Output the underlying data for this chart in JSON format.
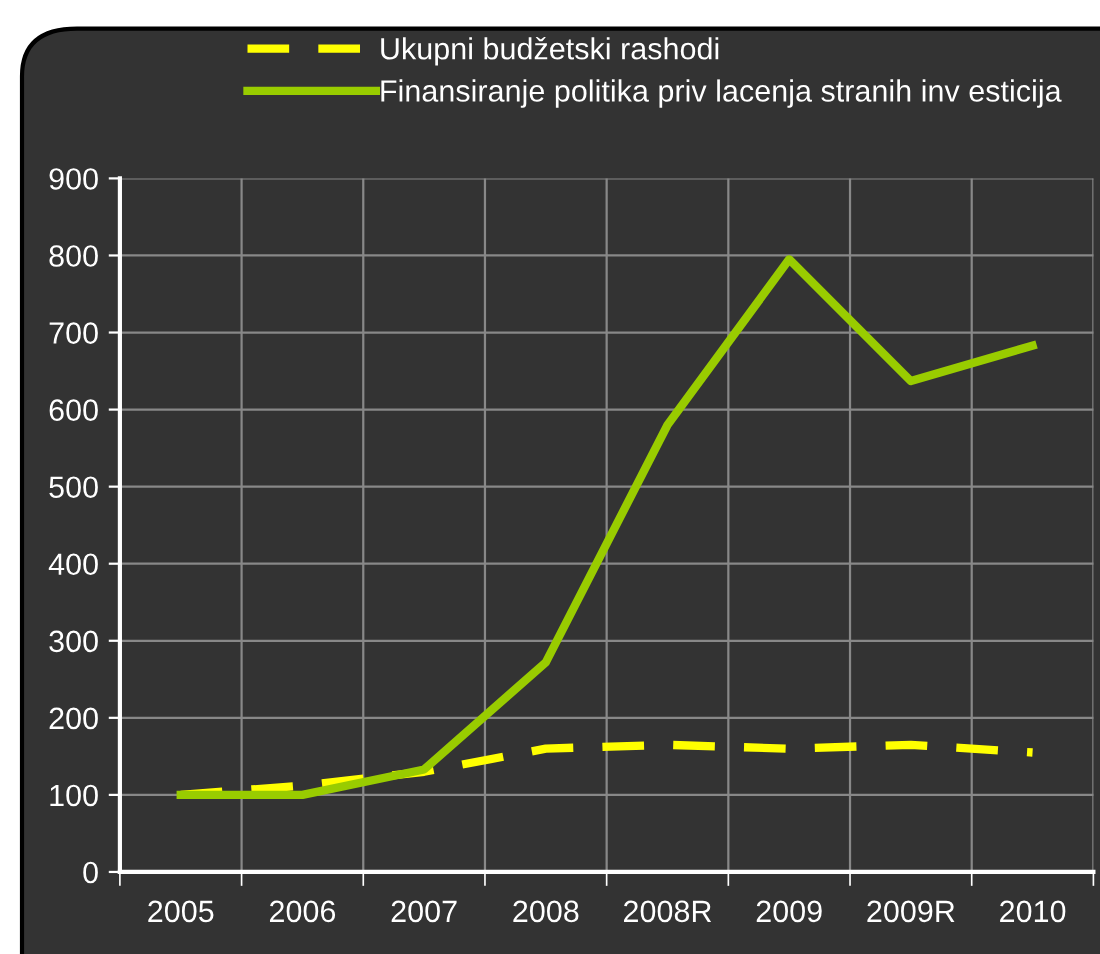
{
  "chart_data": {
    "type": "line",
    "categories": [
      "2005",
      "2006",
      "2007",
      "2008",
      "2008R",
      "2009",
      "2009R",
      "2010"
    ],
    "series": [
      {
        "name": "Ukupni budžetski rashodi",
        "color": "#ffff00",
        "line_style": "dashed",
        "values": [
          100,
          112,
          130,
          160,
          165,
          160,
          165,
          155
        ]
      },
      {
        "name": "Finansiranje politika priv lacenja stranih inv esticija",
        "color": "#99cc00",
        "line_style": "solid",
        "values": [
          100,
          100,
          133,
          272,
          580,
          795,
          637,
          683
        ]
      }
    ],
    "ylim": [
      0,
      900
    ],
    "yticks": [
      0,
      100,
      200,
      300,
      400,
      500,
      600,
      700,
      800,
      900
    ],
    "grid": true,
    "legend": "top",
    "marker": "none"
  }
}
